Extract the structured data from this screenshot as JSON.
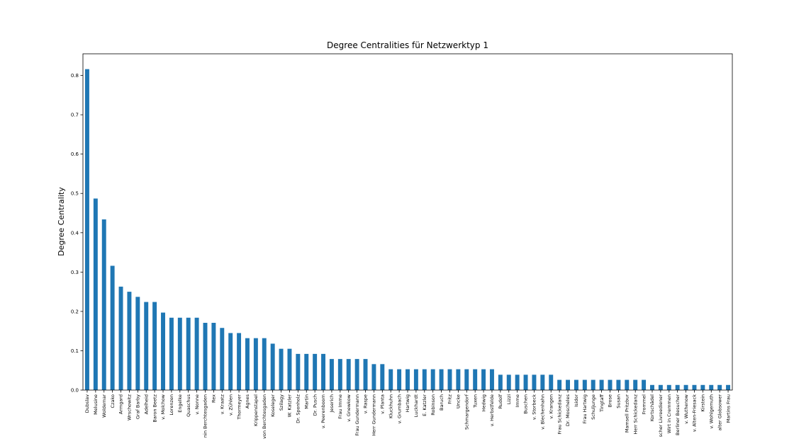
{
  "chart_data": {
    "type": "bar",
    "title": "Degree Centralities für Netzwerktyp 1",
    "xlabel": "",
    "ylabel": "Degree Centrality",
    "ylim": [
      0,
      0.855
    ],
    "yticks": [
      "0.0",
      "0.1",
      "0.2",
      "0.3",
      "0.4",
      "0.5",
      "0.6",
      "0.7",
      "0.8"
    ],
    "grid": false,
    "color": "#1f77b4",
    "categories": [
      "Dubslav",
      "Melusine",
      "Woldemar",
      "Czako",
      "Armgard",
      "Wrschowitz",
      "Graf Barby",
      "Adelheid",
      "Baron Beetz",
      "v. Molchow",
      "Lorenzen",
      "Engelke",
      "Quaschus",
      "v. Nonne",
      "nin Berchtesgaden",
      "Rex",
      "v. Kraatz",
      "v. Zühlen",
      "Thormeyer",
      "Agnes",
      "Krippenstapel",
      "von Berchtesgaden",
      "Koseleger",
      "Szilagy",
      "W. Katzler",
      "Dr. Sponholz",
      "Martin",
      "Dr. Pusch",
      "v. Peerenboom",
      "Jeserich",
      "Frau Imme",
      "v. Gnewkow",
      "Frau Gundermann",
      "v. Raspe",
      "Herr Gundermann",
      "v. Planta",
      "Kluckhuhn",
      "v. Grumbach",
      "Hartwig",
      "Luckhardt",
      "E. Katzler",
      "Robinson",
      "Baruch",
      "Fritz",
      "Uncke",
      "Schmargendorf",
      "Tuxen",
      "Hedwig",
      "v. Herbstfelde",
      "Rudolf",
      "Lizzi",
      "Imme",
      "Buschen",
      "v. Storbeck",
      "v. Blechenhahn",
      "v. Krangen",
      "Frau Schickedanz",
      "Dr. Moscheles",
      "Isidor",
      "Frau Hartwig",
      "Schuljunge",
      "Tingtaff",
      "Brose",
      "Susan",
      "Mamsell Pritzbur",
      "Herr Schickedanz",
      "Frommel",
      "Kortschädel",
      "scher Livreediener",
      "Wirt in Cremmen",
      "Berliner Besucher",
      "v. Wuthenow",
      "v. Alten-Friesack",
      "Kirstein",
      "v. Wohlgemuth",
      "alter Globsower",
      "Martins Frau"
    ],
    "values": [
      0.816,
      0.487,
      0.434,
      0.316,
      0.263,
      0.25,
      0.237,
      0.224,
      0.224,
      0.197,
      0.184,
      0.184,
      0.184,
      0.184,
      0.171,
      0.171,
      0.158,
      0.145,
      0.145,
      0.132,
      0.132,
      0.132,
      0.118,
      0.105,
      0.105,
      0.092,
      0.092,
      0.092,
      0.092,
      0.079,
      0.079,
      0.079,
      0.079,
      0.079,
      0.066,
      0.066,
      0.053,
      0.053,
      0.053,
      0.053,
      0.053,
      0.053,
      0.053,
      0.053,
      0.053,
      0.053,
      0.053,
      0.053,
      0.053,
      0.039,
      0.039,
      0.039,
      0.039,
      0.039,
      0.039,
      0.039,
      0.026,
      0.026,
      0.026,
      0.026,
      0.026,
      0.026,
      0.026,
      0.026,
      0.026,
      0.026,
      0.026,
      0.013,
      0.013,
      0.013,
      0.013,
      0.013,
      0.013,
      0.013,
      0.013,
      0.013,
      0.013
    ]
  }
}
